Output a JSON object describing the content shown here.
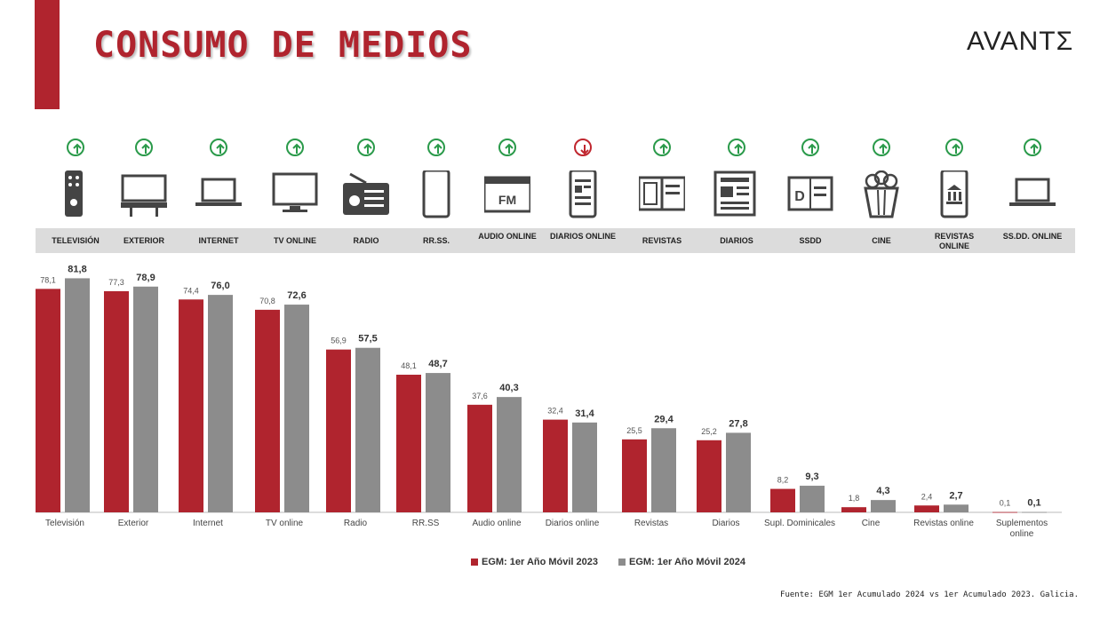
{
  "header": {
    "title": "CONSUMO DE MEDIOS",
    "logo_text": "AVANTΣ"
  },
  "icons": [
    {
      "label": "TELEVISIÓN",
      "trend": "up",
      "icon": "tv-remote-icon"
    },
    {
      "label": "EXTERIOR",
      "trend": "up",
      "icon": "billboard-icon"
    },
    {
      "label": "INTERNET",
      "trend": "up",
      "icon": "laptop-icon"
    },
    {
      "label": "TV ONLINE",
      "trend": "up",
      "icon": "monitor-icon"
    },
    {
      "label": "RADIO",
      "trend": "up",
      "icon": "radio-icon"
    },
    {
      "label": "RR.SS.",
      "trend": "up",
      "icon": "smartphone-icon"
    },
    {
      "label": "AUDIO ONLINE",
      "trend": "up",
      "icon": "fm-window-icon",
      "glyph": "FM"
    },
    {
      "label": "DIARIOS ONLINE",
      "trend": "down",
      "icon": "phone-news-icon"
    },
    {
      "label": "REVISTAS",
      "trend": "up",
      "icon": "open-magazine-icon"
    },
    {
      "label": "DIARIOS",
      "trend": "up",
      "icon": "newspaper-icon"
    },
    {
      "label": "SSDD",
      "trend": "up",
      "icon": "supplement-icon",
      "glyph": "D"
    },
    {
      "label": "CINE",
      "trend": "up",
      "icon": "popcorn-icon"
    },
    {
      "label": "REVISTAS ONLINE",
      "trend": "up",
      "icon": "phone-bank-icon"
    },
    {
      "label": "SS.DD. ONLINE",
      "trend": "up",
      "icon": "laptop-icon"
    }
  ],
  "chart_data": {
    "type": "bar",
    "categories": [
      "Televisión",
      "Exterior",
      "Internet",
      "TV online",
      "Radio",
      "RR.SS",
      "Audio online",
      "Diarios online",
      "Revistas",
      "Diarios",
      "Supl. Dominicales",
      "Cine",
      "Revistas online",
      "Suplementos online"
    ],
    "series": [
      {
        "name": "EGM: 1er Año Móvil 2023",
        "color": "#b0242e",
        "values": [
          78.1,
          77.3,
          74.4,
          70.8,
          56.9,
          48.1,
          37.6,
          32.4,
          25.5,
          25.2,
          8.2,
          1.8,
          2.4,
          0.1
        ],
        "labels": [
          "78,1",
          "77,3",
          "74,4",
          "70,8",
          "56,9",
          "48,1",
          "37,6",
          "32,4",
          "25,5",
          "25,2",
          "8,2",
          "1,8",
          "2,4",
          "0,1"
        ]
      },
      {
        "name": "EGM: 1er Año Móvil 2024",
        "color": "#8c8c8c",
        "values": [
          81.8,
          78.9,
          76.0,
          72.6,
          57.5,
          48.7,
          40.3,
          31.4,
          29.4,
          27.8,
          9.3,
          4.3,
          2.7,
          0.1
        ],
        "labels": [
          "81,8",
          "78,9",
          "76,0",
          "72,6",
          "57,5",
          "48,7",
          "40,3",
          "31,4",
          "29,4",
          "27,8",
          "9,3",
          "4,3",
          "2,7",
          "0,1"
        ]
      }
    ],
    "ylim": [
      0,
      90
    ],
    "grid": false,
    "legend": "bottom-center"
  },
  "source": "Fuente: EGM 1er Acumulado 2024 vs 1er Acumulado 2023. Galicia."
}
